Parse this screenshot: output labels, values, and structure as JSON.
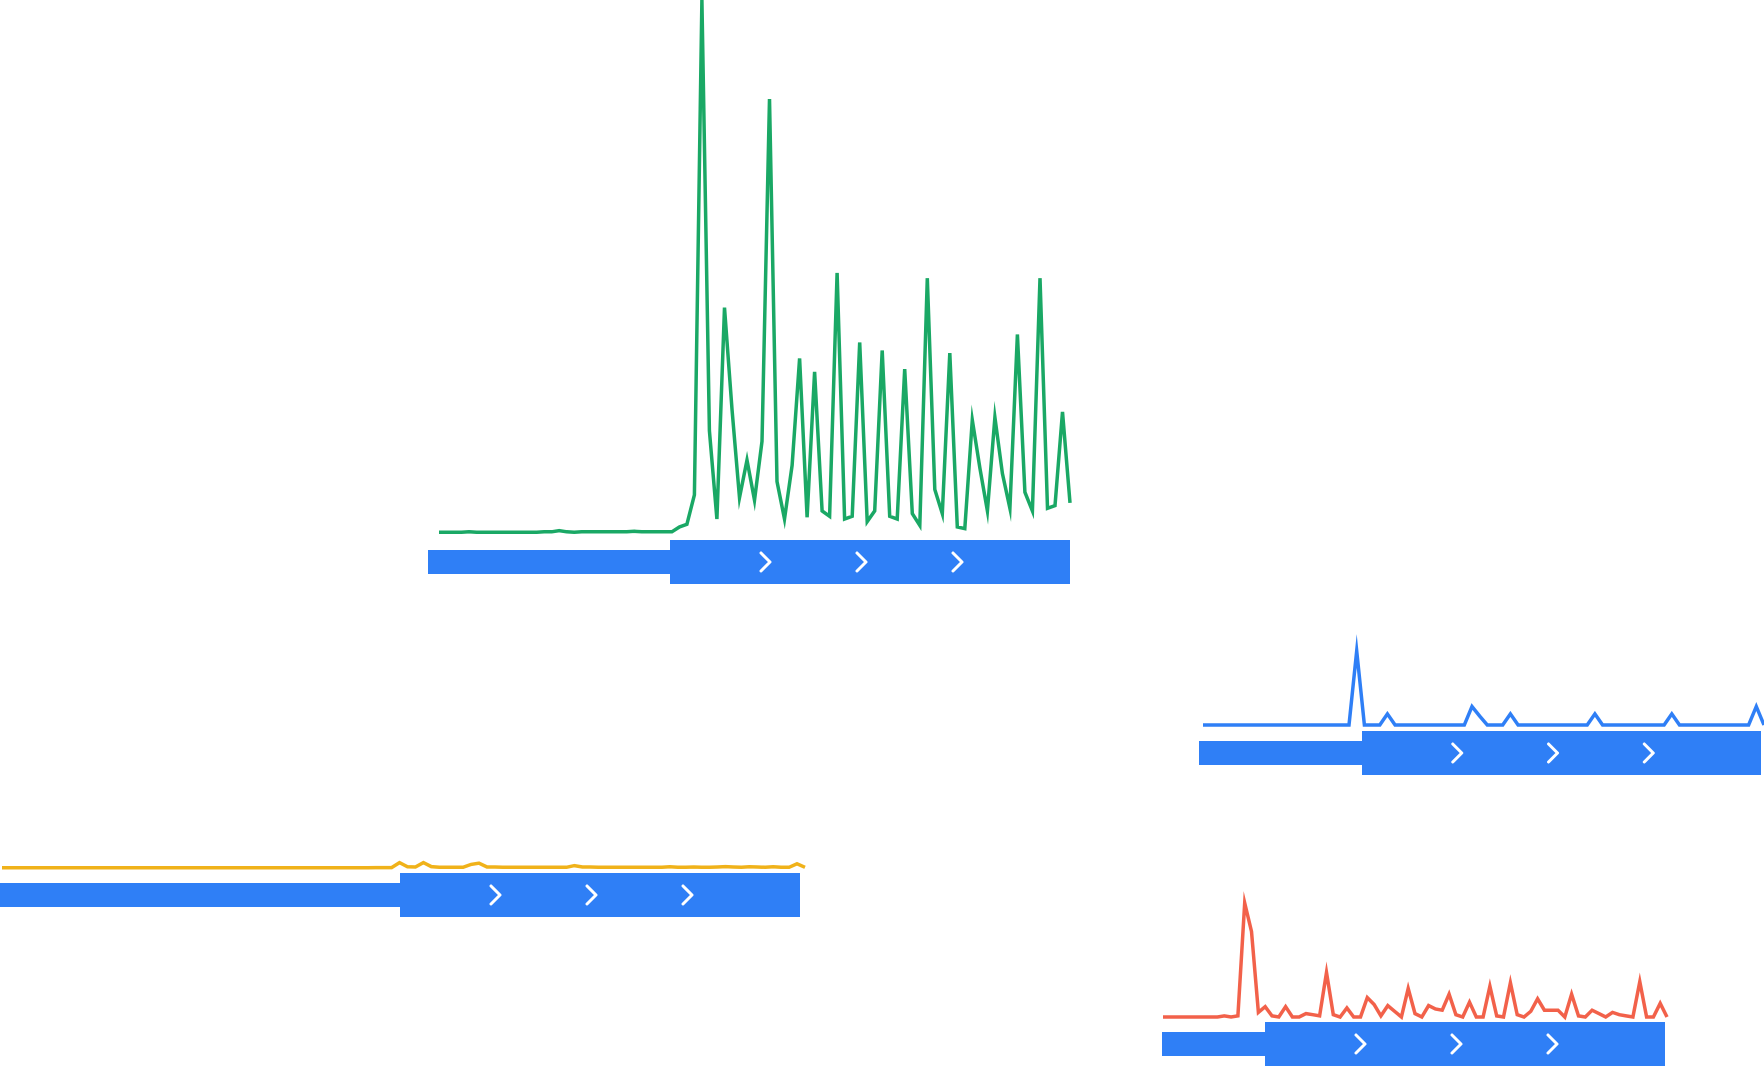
{
  "colors": {
    "timeline_bar": "#2f7ff6",
    "chevron": "#ffffff"
  },
  "chart_data": [
    {
      "type": "line",
      "title": "",
      "xlabel": "",
      "ylabel": "",
      "color": "#1aa865",
      "grid": false,
      "legend": "none",
      "ylim": [
        0,
        100
      ],
      "series": [
        {
          "values": [
            0.5,
            0.5,
            0.5,
            0.5,
            0.6,
            0.5,
            0.5,
            0.5,
            0.5,
            0.5,
            0.5,
            0.5,
            0.5,
            0.5,
            0.6,
            0.6,
            0.8,
            0.6,
            0.5,
            0.6,
            0.6,
            0.6,
            0.6,
            0.6,
            0.6,
            0.6,
            0.7,
            0.6,
            0.6,
            0.6,
            0.6,
            0.6,
            1.5,
            2.0,
            7.5,
            100,
            19.5,
            3.0,
            42.5,
            23.5,
            7.0,
            14.0,
            6.5,
            17.5,
            81.5,
            10.0,
            3.0,
            13.0,
            33.0,
            3.3,
            30.5,
            4.5,
            3.5,
            49.0,
            3.0,
            3.5,
            36.0,
            2.5,
            4.5,
            34.5,
            3.5,
            3.0,
            31.0,
            4.0,
            1.8,
            48.0,
            8.5,
            4.0,
            34.0,
            1.5,
            1.2,
            21.5,
            12.5,
            4.5,
            22.0,
            11.5,
            5.0,
            37.5,
            8.0,
            4.5,
            48.0,
            5.0,
            5.5,
            23.0,
            6.0
          ]
        }
      ],
      "phases": [
        {
          "label": "",
          "chevrons": 0
        },
        {
          "label": "",
          "chevrons": 3
        }
      ]
    },
    {
      "type": "line",
      "title": "",
      "xlabel": "",
      "ylabel": "",
      "color": "#2f7ff6",
      "grid": false,
      "legend": "none",
      "ylim": [
        0,
        100
      ],
      "series": [
        {
          "values": [
            0,
            0,
            0,
            0,
            0,
            0,
            0,
            0,
            0,
            0,
            0,
            0,
            0,
            0,
            0,
            0,
            0,
            0,
            0,
            0,
            100,
            0,
            0,
            0,
            15,
            0,
            0,
            0,
            0,
            0,
            0,
            0,
            0,
            0,
            0,
            25,
            12,
            0,
            0,
            0,
            15,
            0,
            0,
            0,
            0,
            0,
            0,
            0,
            0,
            0,
            0,
            15,
            0,
            0,
            0,
            0,
            0,
            0,
            0,
            0,
            0,
            15,
            0,
            0,
            0,
            0,
            0,
            0,
            0,
            0,
            0,
            0,
            25,
            0
          ]
        }
      ],
      "phases": [
        {
          "label": "",
          "chevrons": 0
        },
        {
          "label": "",
          "chevrons": 3
        }
      ]
    },
    {
      "type": "line",
      "title": "",
      "xlabel": "",
      "ylabel": "",
      "color": "#f0b21a",
      "grid": false,
      "legend": "none",
      "ylim": [
        0,
        100
      ],
      "series": [
        {
          "values": [
            2,
            2,
            2,
            2,
            2,
            2,
            2,
            2,
            2,
            2,
            2,
            2,
            2,
            2,
            2,
            2,
            2,
            2,
            2,
            2,
            2,
            2,
            2,
            2,
            2,
            2,
            2,
            2,
            2,
            2,
            2,
            2,
            2,
            2,
            2,
            2,
            2,
            2,
            2,
            2,
            2,
            2,
            2,
            2,
            2,
            2,
            2,
            3,
            3,
            3,
            45,
            10,
            8,
            45,
            12,
            6,
            6,
            6,
            6,
            30,
            40,
            8,
            8,
            6,
            6,
            6,
            6,
            6,
            6,
            6,
            6,
            6,
            20,
            8,
            8,
            6,
            6,
            6,
            6,
            6,
            6,
            6,
            6,
            6,
            10,
            6,
            6,
            8,
            6,
            6,
            8,
            12,
            8,
            6,
            10,
            8,
            6,
            10,
            6,
            6,
            35,
            6
          ]
        }
      ],
      "phases": [
        {
          "label": "",
          "chevrons": 0
        },
        {
          "label": "",
          "chevrons": 3
        }
      ]
    },
    {
      "type": "line",
      "title": "",
      "xlabel": "",
      "ylabel": "",
      "color": "#f2614a",
      "grid": false,
      "legend": "none",
      "ylim": [
        0,
        100
      ],
      "series": [
        {
          "values": [
            0,
            0,
            0,
            0,
            0,
            0,
            0,
            0,
            0,
            1,
            0,
            1,
            100,
            75,
            4,
            9,
            1,
            0,
            9,
            0,
            0,
            3,
            2,
            1,
            39,
            2,
            0,
            8,
            0,
            0,
            17,
            11,
            1,
            10,
            5,
            0,
            25,
            3,
            0,
            10,
            7,
            6,
            20,
            2,
            0,
            13,
            0,
            0,
            27,
            1,
            0,
            30,
            2,
            0,
            5,
            16,
            6,
            6,
            6,
            0,
            20,
            1,
            0,
            6,
            3,
            0,
            4,
            2,
            1,
            0,
            31,
            0,
            0,
            12,
            0
          ]
        }
      ],
      "phases": [
        {
          "label": "",
          "chevrons": 0
        },
        {
          "label": "",
          "chevrons": 3
        }
      ]
    }
  ]
}
